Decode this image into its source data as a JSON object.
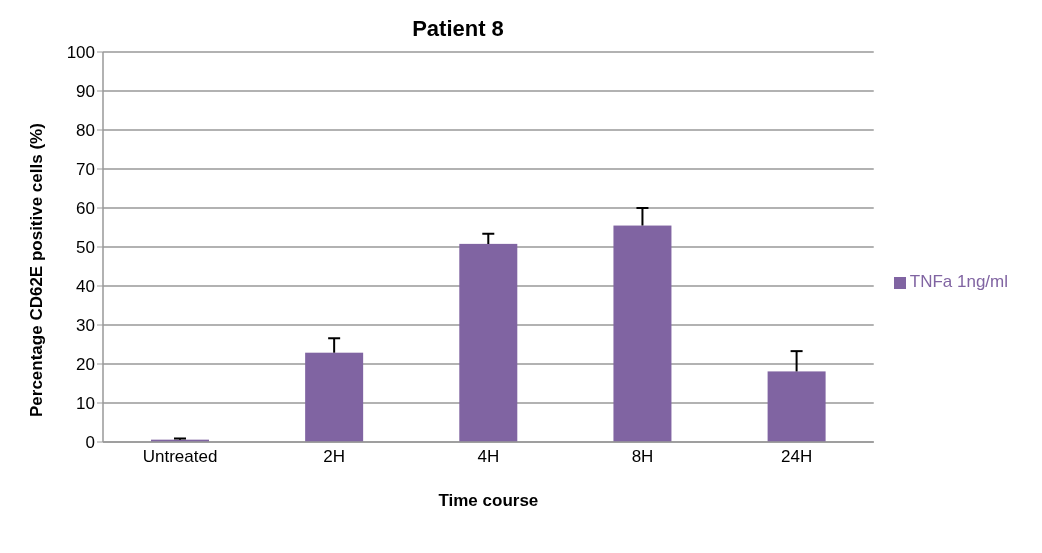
{
  "chart_data": {
    "type": "bar",
    "title": "Patient 8",
    "xlabel": "Time course",
    "ylabel": "Percentage CD62E positive cells (%)",
    "categories": [
      "Untreated",
      "2H",
      "4H",
      "8H",
      "24H"
    ],
    "series": [
      {
        "name": "TNFa 1ng/ml",
        "color": "#8064a2",
        "values": [
          0.6,
          22.9,
          50.8,
          55.5,
          18.1
        ],
        "errors": [
          [
            0.6,
            0.9
          ],
          [
            22.9,
            26.6
          ],
          [
            50.8,
            53.4
          ],
          [
            55.5,
            60.0
          ],
          [
            18.1,
            23.3
          ]
        ]
      }
    ],
    "ylim": [
      0,
      100
    ],
    "yticks": [
      0,
      10,
      20,
      30,
      40,
      50,
      60,
      70,
      80,
      90,
      100
    ],
    "grid": "y",
    "legend": "right"
  }
}
